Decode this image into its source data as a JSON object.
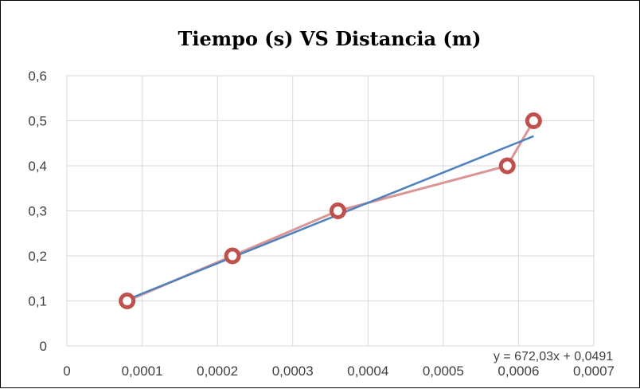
{
  "chart_data": {
    "type": "scatter",
    "title": "Tiempo (s) VS Distancia (m)",
    "xlabel": "",
    "ylabel": "",
    "xlim": [
      0,
      0.0007
    ],
    "ylim": [
      0,
      0.6
    ],
    "x_ticks": [
      0,
      0.0001,
      0.0002,
      0.0003,
      0.0004,
      0.0005,
      0.0006,
      0.0007
    ],
    "x_tick_labels": [
      "0",
      "0,0001",
      "0,0002",
      "0,0003",
      "0,0004",
      "0,0005",
      "0,0006",
      "0,0007"
    ],
    "y_ticks": [
      0,
      0.1,
      0.2,
      0.3,
      0.4,
      0.5,
      0.6
    ],
    "y_tick_labels": [
      "0",
      "0,1",
      "0,2",
      "0,3",
      "0,4",
      "0,5",
      "0,6"
    ],
    "grid": true,
    "series": [
      {
        "x": [
          8e-05,
          0.00022,
          0.00036,
          0.000585,
          0.00062
        ],
        "y": [
          0.1,
          0.2,
          0.3,
          0.4,
          0.5
        ],
        "color": "#c0504d",
        "line_color": "#d99694",
        "marker": "circle"
      }
    ],
    "trendline": {
      "type": "linear",
      "slope": 672.03,
      "intercept": 0.0491,
      "x_range": [
        8e-05,
        0.00062
      ],
      "color": "#4f81bd",
      "equation": "y = 672,03x + 0,0491"
    }
  }
}
